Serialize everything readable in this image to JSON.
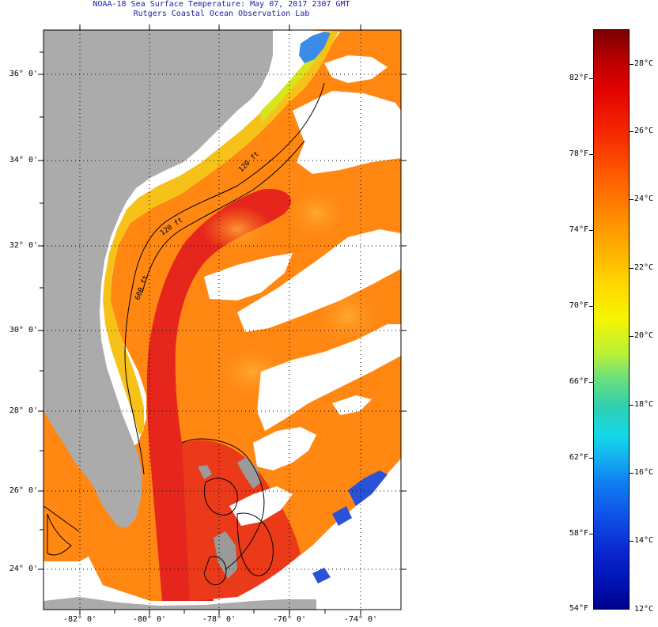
{
  "title": {
    "line1": "NOAA-18 Sea Surface Temperature:  May 07, 2017 2307 GMT",
    "line2": "Rutgers Coastal Ocean Observation Lab"
  },
  "map": {
    "lat_labels": [
      "36° 0'",
      "34° 0'",
      "32° 0'",
      "30° 0'",
      "28° 0'",
      "26° 0'",
      "24° 0'"
    ],
    "lon_labels": [
      "-82° 0'",
      "-80° 0'",
      "-78° 0'",
      "-76° 0'",
      "-74° 0'"
    ],
    "contour_labels": [
      "120 ft",
      "120 ft",
      "600 ft"
    ]
  },
  "colorbar": {
    "fahrenheit": [
      "82°F",
      "78°F",
      "74°F",
      "70°F",
      "66°F",
      "62°F",
      "58°F",
      "54°F"
    ],
    "celsius": [
      "28°C",
      "26°C",
      "24°C",
      "22°C",
      "20°C",
      "18°C",
      "16°C",
      "14°C",
      "12°C"
    ]
  },
  "colors": {
    "land": "#ababab",
    "cloud": "#ffffff",
    "gulf_stream": "#e8241a",
    "shelf_warm": "#ff8a10",
    "coastal": "#f7d21c",
    "cold": "#1838d8"
  }
}
